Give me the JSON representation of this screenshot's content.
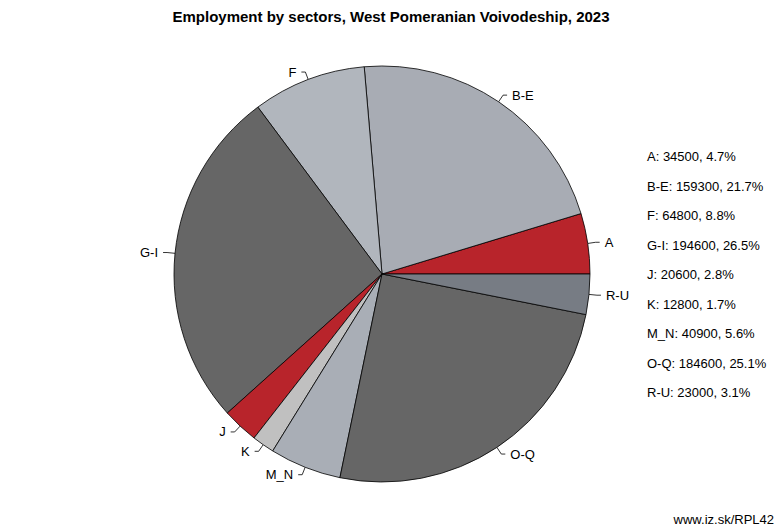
{
  "chart_data": {
    "type": "pie",
    "title": "Employment by sectors, West Pomeranian Voivodeship, 2023",
    "categories": [
      "A",
      "B-E",
      "F",
      "G-I",
      "J",
      "K",
      "M_N",
      "O-Q",
      "R-U"
    ],
    "values": [
      34500,
      159300,
      64800,
      194600,
      20600,
      12800,
      40900,
      184600,
      23000
    ],
    "value_labels": [
      "A: 34500, 4.7%",
      "B-E: 159300, 21.7%",
      "F: 64800, 8.8%",
      "G-I: 194600, 26.5%",
      "J: 20600, 2.8%",
      "K: 12800, 1.7%",
      "M_N: 40900, 5.6%",
      "O-Q: 184600, 25.1%",
      "R-U: 23000, 3.1%"
    ],
    "colors": [
      "#b8242b",
      "#a8acb4",
      "#b1b6bd",
      "#666666",
      "#b8242b",
      "#c0c0c0",
      "#a9aeb6",
      "#666666",
      "#777c84"
    ],
    "source": "www.iz.sk/RPL42"
  }
}
